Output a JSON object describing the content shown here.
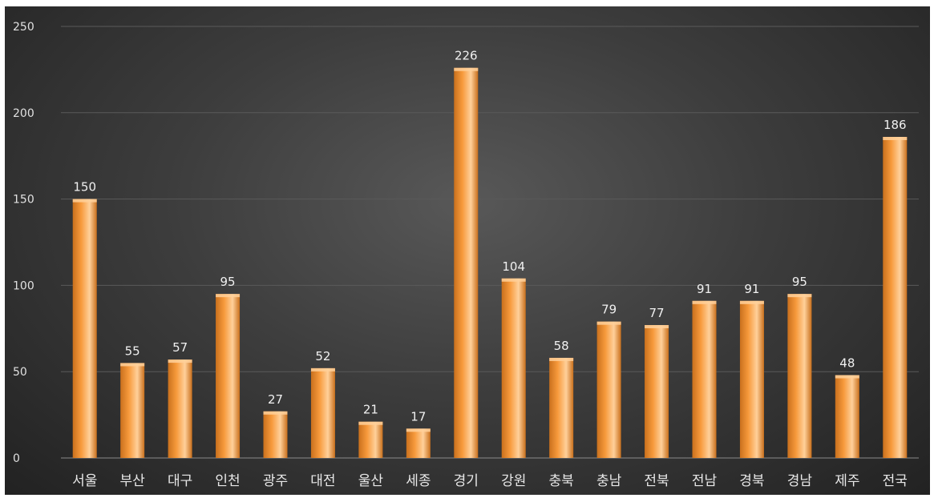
{
  "chart_data": {
    "type": "bar",
    "categories": [
      "서울",
      "부산",
      "대구",
      "인천",
      "광주",
      "대전",
      "울산",
      "세종",
      "경기",
      "강원",
      "충북",
      "충남",
      "전북",
      "전남",
      "경북",
      "경남",
      "제주",
      "전국"
    ],
    "values": [
      150,
      55,
      57,
      95,
      27,
      52,
      21,
      17,
      226,
      104,
      58,
      79,
      77,
      91,
      91,
      95,
      48,
      186
    ],
    "title": "",
    "xlabel": "",
    "ylabel": "",
    "ylim": [
      0,
      250
    ],
    "yticks": [
      0,
      50,
      100,
      150,
      200,
      250
    ],
    "grid": true,
    "data_labels": true,
    "colors": {
      "bar": "#f79a3c",
      "bar_highlight": "#ffd09a",
      "bar_shadow": "#c9701d",
      "gridline": "#5a5a5a"
    }
  }
}
